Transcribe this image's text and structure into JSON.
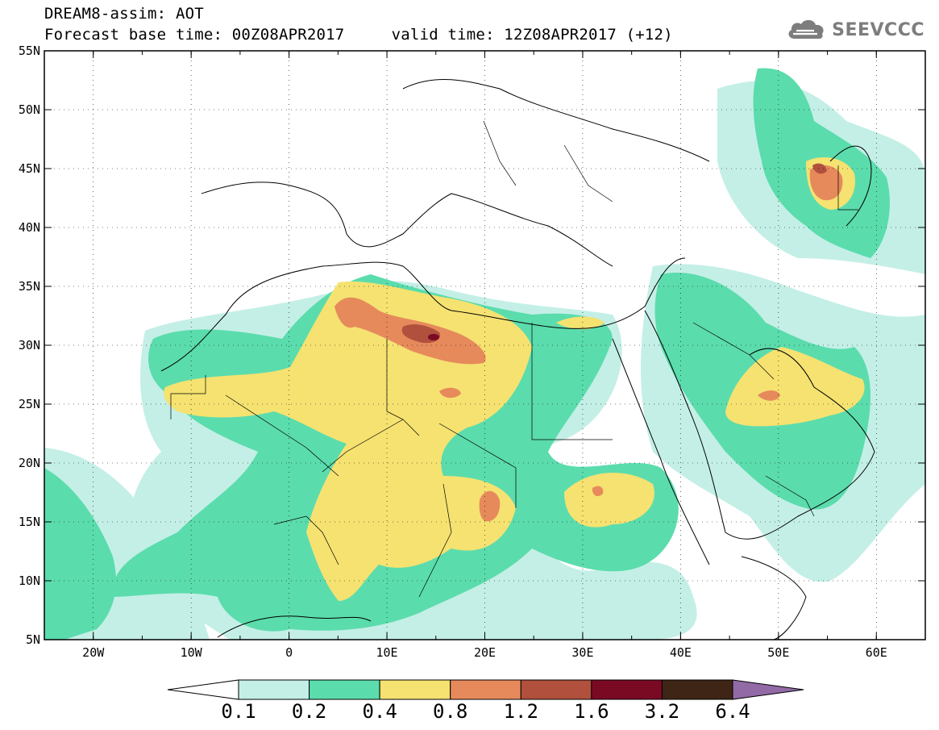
{
  "header": {
    "title": "DREAM8-assim: AOT",
    "subtitle": "Forecast base time: 00Z08APR2017     valid time: 12Z08APR2017 (+12)"
  },
  "logo": {
    "text": "SEEVCCC",
    "icon": "cloud-icon",
    "color": "#7d7d7d"
  },
  "map": {
    "lon_range": [
      -25,
      65
    ],
    "lat_range": [
      5,
      55
    ],
    "lon_ticks": [
      "20W",
      "10W",
      "0",
      "10E",
      "20E",
      "30E",
      "40E",
      "50E",
      "60E"
    ],
    "lat_ticks": [
      "55N",
      "50N",
      "45N",
      "40N",
      "35N",
      "30N",
      "25N",
      "20N",
      "15N",
      "10N",
      "5N"
    ]
  },
  "colorbar": {
    "labels": [
      "0.1",
      "0.2",
      "0.4",
      "0.8",
      "1.2",
      "1.6",
      "3.2",
      "6.4"
    ],
    "colors": [
      "#ffffff",
      "#c4efe6",
      "#5bdcad",
      "#f5e271",
      "#e68a5c",
      "#b0503d",
      "#7a0a24",
      "#3e2516",
      "#926aa6"
    ]
  }
}
